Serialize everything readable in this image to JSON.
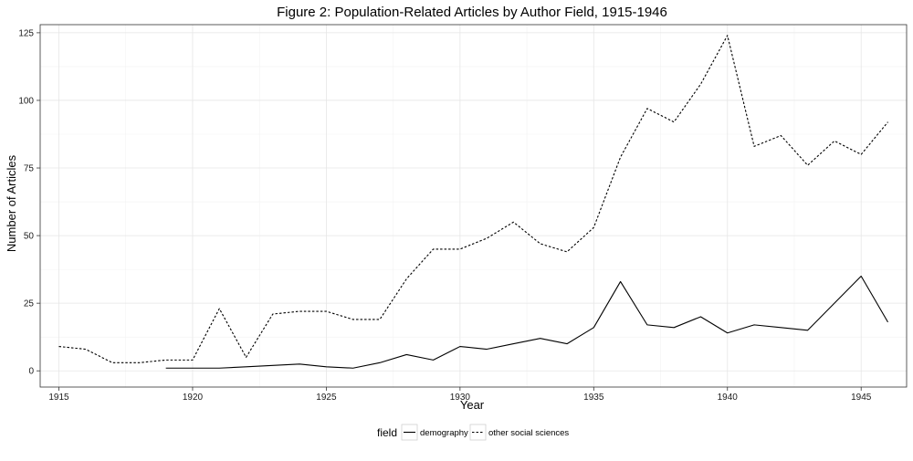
{
  "chart_data": {
    "type": "line",
    "title": "Figure 2: Population-Related Articles by Author Field, 1915-1946",
    "xlabel": "Year",
    "ylabel": "Number of Articles",
    "xlim": [
      1914.3,
      1946.7
    ],
    "ylim": [
      -6,
      128
    ],
    "xticks": [
      1915,
      1920,
      1925,
      1930,
      1935,
      1940,
      1945
    ],
    "yticks": [
      0,
      25,
      50,
      75,
      100,
      125
    ],
    "grid": true,
    "legend": {
      "title": "field",
      "position": "bottom"
    },
    "series": [
      {
        "name": "demography",
        "line_style": "solid",
        "color": "#000000",
        "x": [
          1919,
          1920,
          1921,
          1922,
          1923,
          1924,
          1925,
          1926,
          1927,
          1928,
          1929,
          1930,
          1931,
          1932,
          1933,
          1934,
          1935,
          1936,
          1937,
          1938,
          1939,
          1940,
          1941,
          1942,
          1943,
          1944,
          1945,
          1946
        ],
        "y": [
          1,
          1,
          1,
          1.5,
          2,
          2.5,
          1.5,
          1,
          3,
          6,
          4,
          9,
          8,
          10,
          12,
          10,
          16,
          33,
          17,
          16,
          20,
          14,
          17,
          16,
          15,
          25,
          35,
          18
        ]
      },
      {
        "name": "other social sciences",
        "line_style": "dashed",
        "color": "#000000",
        "x": [
          1915,
          1916,
          1917,
          1918,
          1919,
          1920,
          1921,
          1922,
          1923,
          1924,
          1925,
          1926,
          1927,
          1928,
          1929,
          1930,
          1931,
          1932,
          1933,
          1934,
          1935,
          1936,
          1937,
          1938,
          1939,
          1940,
          1941,
          1942,
          1943,
          1944,
          1945,
          1946
        ],
        "y": [
          9,
          8,
          3,
          3,
          4,
          4,
          23,
          5,
          21,
          22,
          22,
          19,
          19,
          34,
          45,
          45,
          49,
          55,
          47,
          44,
          53,
          79,
          97,
          92,
          106,
          124,
          83,
          87,
          76,
          85,
          80,
          92
        ]
      }
    ]
  }
}
